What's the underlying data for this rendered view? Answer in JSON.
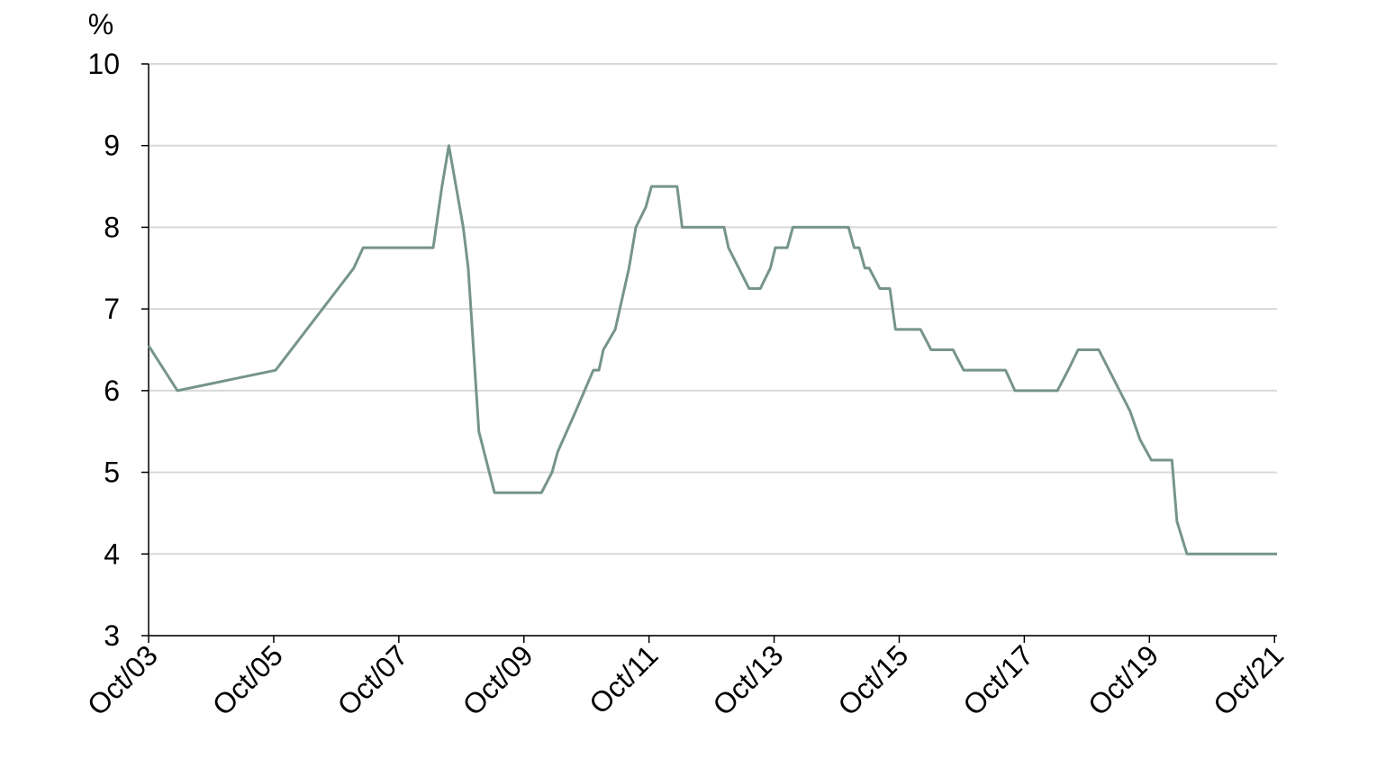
{
  "chart_data": {
    "type": "line",
    "y_unit": "%",
    "x": [
      2003.75,
      2004.21,
      2005.78,
      2007.03,
      2007.18,
      2008.3,
      2008.44,
      2008.55,
      2008.78,
      2008.86,
      2009.03,
      2009.28,
      2010.03,
      2010.2,
      2010.29,
      2010.58,
      2010.86,
      2010.95,
      2011.02,
      2011.21,
      2011.43,
      2011.54,
      2011.7,
      2011.79,
      2012.2,
      2012.28,
      2012.95,
      2013.02,
      2013.35,
      2013.53,
      2013.69,
      2013.77,
      2013.96,
      2014.05,
      2014.94,
      2015.03,
      2015.11,
      2015.2,
      2015.27,
      2015.44,
      2015.6,
      2015.69,
      2016.09,
      2016.26,
      2016.61,
      2016.78,
      2017.45,
      2017.6,
      2018.28,
      2018.45,
      2018.61,
      2018.94,
      2019.44,
      2019.6,
      2019.78,
      2020.11,
      2020.19,
      2020.35,
      2021.79
    ],
    "series": [
      {
        "color": "#76958a",
        "values": [
          6.55,
          6.0,
          6.25,
          7.5,
          7.75,
          7.75,
          8.5,
          9.0,
          8.0,
          7.5,
          5.5,
          4.75,
          4.75,
          5.0,
          5.25,
          5.75,
          6.25,
          6.25,
          6.5,
          6.75,
          7.5,
          8.0,
          8.25,
          8.5,
          8.5,
          8.0,
          8.0,
          7.75,
          7.25,
          7.25,
          7.5,
          7.75,
          7.75,
          8.0,
          8.0,
          7.75,
          7.75,
          7.5,
          7.5,
          7.25,
          7.25,
          6.75,
          6.75,
          6.5,
          6.5,
          6.25,
          6.25,
          6.0,
          6.0,
          6.25,
          6.5,
          6.5,
          5.75,
          5.4,
          5.15,
          5.15,
          4.4,
          4.0,
          4.0
        ]
      }
    ],
    "xlim": [
      2003.75,
      2021.79
    ],
    "xticks": [
      {
        "value": 2003.75,
        "label": "Oct/03"
      },
      {
        "value": 2005.75,
        "label": "Oct/05"
      },
      {
        "value": 2007.75,
        "label": "Oct/07"
      },
      {
        "value": 2009.75,
        "label": "Oct/09"
      },
      {
        "value": 2011.75,
        "label": "Oct/11"
      },
      {
        "value": 2013.75,
        "label": "Oct/13"
      },
      {
        "value": 2015.75,
        "label": "Oct/15"
      },
      {
        "value": 2017.75,
        "label": "Oct/17"
      },
      {
        "value": 2019.75,
        "label": "Oct/19"
      },
      {
        "value": 2021.75,
        "label": "Oct/21"
      }
    ],
    "ylim": [
      3,
      10
    ],
    "yticks": [
      3,
      4,
      5,
      6,
      7,
      8,
      9,
      10
    ],
    "grid": true
  }
}
